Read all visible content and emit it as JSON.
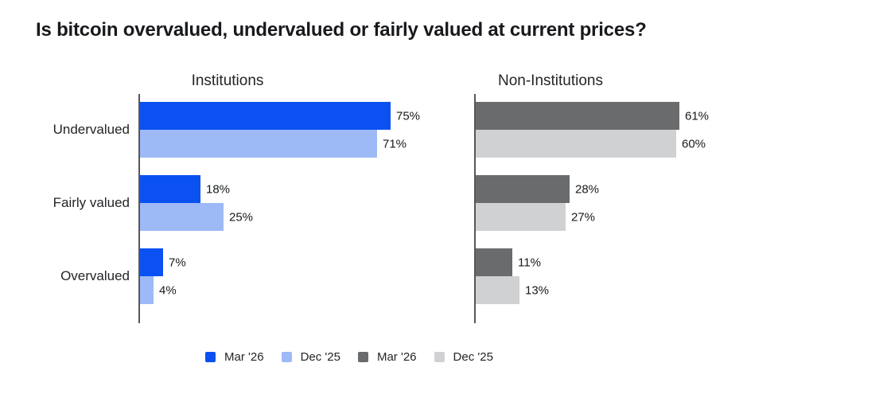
{
  "title": "Is bitcoin overvalued, undervalued or fairly valued at current prices?",
  "colors": {
    "institutions_mar26": "#0b51f2",
    "institutions_dec25": "#9db9f6",
    "non_institutions_mar26": "#6a6b6d",
    "non_institutions_dec25": "#d0d1d3",
    "axis": "#56575b",
    "text": "#17191c"
  },
  "legend": [
    {
      "label": "Mar '26",
      "color": "#0b51f2"
    },
    {
      "label": "Dec '25",
      "color": "#9db9f6"
    },
    {
      "label": "Mar '26",
      "color": "#6a6b6d"
    },
    {
      "label": "Dec '25",
      "color": "#d0d1d3"
    }
  ],
  "chart_data": {
    "type": "bar",
    "orientation": "horizontal",
    "categories": [
      "Undervalued",
      "Fairly valued",
      "Overvalued"
    ],
    "value_suffix": "%",
    "xlim": [
      0,
      100
    ],
    "grid": false,
    "legend_position": "bottom",
    "panels": [
      {
        "title": "Institutions",
        "series": [
          {
            "name": "Mar '26",
            "color": "#0b51f2",
            "values": [
              75,
              18,
              7
            ]
          },
          {
            "name": "Dec '25",
            "color": "#9db9f6",
            "values": [
              71,
              25,
              4
            ]
          }
        ]
      },
      {
        "title": "Non-Institutions",
        "series": [
          {
            "name": "Mar '26",
            "color": "#6a6b6d",
            "values": [
              61,
              28,
              11
            ]
          },
          {
            "name": "Dec '25",
            "color": "#d0d1d3",
            "values": [
              60,
              27,
              13
            ]
          }
        ]
      }
    ]
  }
}
